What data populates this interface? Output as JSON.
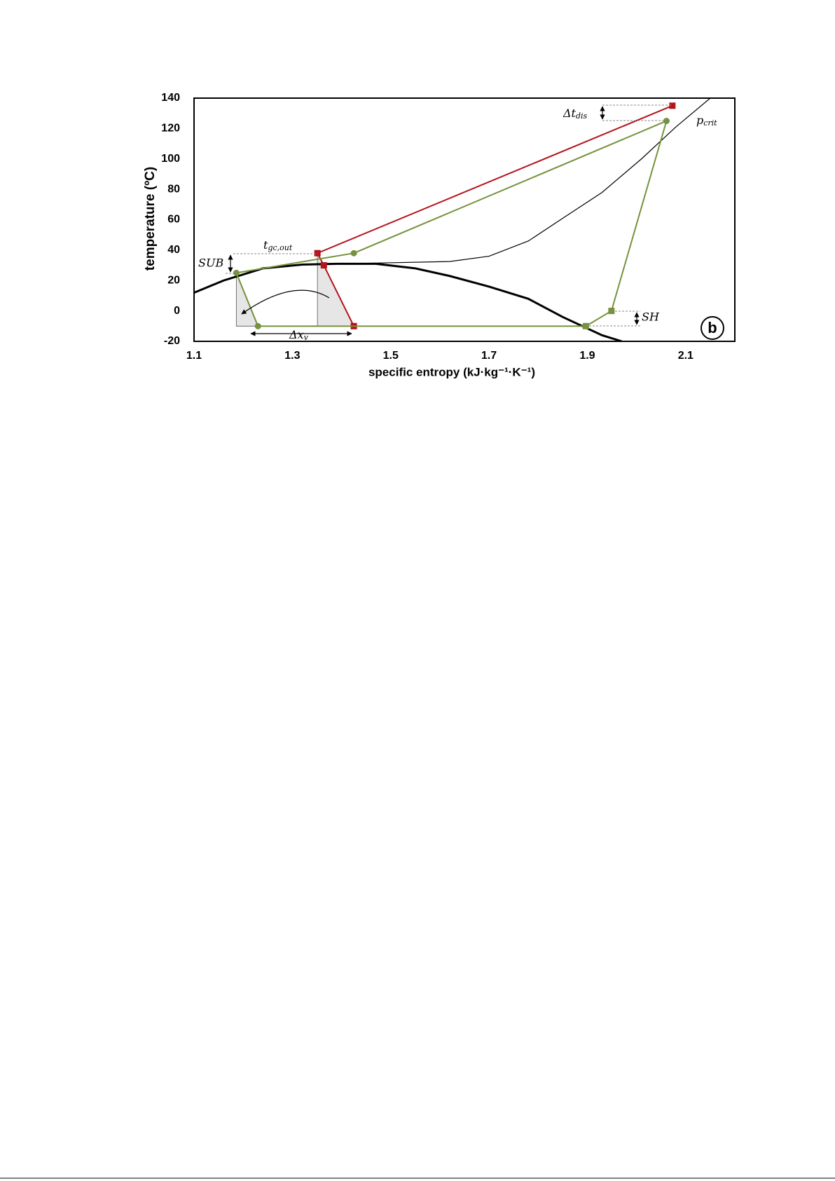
{
  "chart_data": {
    "type": "line",
    "x_label": "specific entropy (kJ·kg⁻¹·K⁻¹)",
    "y_label": "temperature (ºC)",
    "xlim": [
      1.1,
      2.2
    ],
    "ylim": [
      -20,
      140
    ],
    "xticks": [
      1.1,
      1.3,
      1.5,
      1.7,
      1.9,
      2.1
    ],
    "yticks": [
      -20,
      0,
      20,
      40,
      60,
      80,
      100,
      120,
      140
    ],
    "grid": false,
    "shaded": [
      {
        "color": "#e6e6e6",
        "x": [
          1.186,
          1.186,
          1.23
        ],
        "values": [
          25,
          -10,
          -10
        ]
      },
      {
        "color": "#e6e6e6",
        "x": [
          1.351,
          1.351,
          1.425
        ],
        "values": [
          38,
          -10,
          -10
        ]
      }
    ],
    "series": [
      {
        "color": "#000000",
        "width": 3,
        "x": [
          1.1,
          1.16,
          1.24,
          1.32,
          1.39,
          1.47,
          1.55,
          1.62,
          1.7,
          1.78,
          1.85,
          1.93,
          1.97
        ],
        "values": [
          12,
          20,
          28,
          30.5,
          31,
          31,
          28,
          23,
          16,
          8,
          -4,
          -16,
          -20
        ]
      },
      {
        "color": "#000000",
        "width": 1.2,
        "x": [
          1.39,
          1.47,
          1.62,
          1.7,
          1.78,
          1.85,
          1.93,
          2.01,
          2.08,
          2.15
        ],
        "values": [
          31,
          31.5,
          32.5,
          36,
          46,
          61,
          78,
          100,
          121,
          140
        ]
      },
      {
        "color": "#b5121b",
        "width": 2,
        "marker": "square",
        "x": [
          2.073,
          1.351,
          1.364,
          1.425
        ],
        "values": [
          135,
          38,
          30,
          -10
        ]
      },
      {
        "color": "#76923c",
        "width": 2,
        "markers": [
          "circle",
          "none",
          "circle",
          "circle",
          "square",
          "square",
          "circle",
          "none"
        ],
        "x": [
          1.186,
          1.351,
          1.425,
          2.061,
          1.949,
          1.897,
          1.23,
          1.186
        ],
        "values": [
          25,
          34,
          38,
          125,
          0,
          -10,
          -10,
          25
        ]
      }
    ],
    "annotations": {
      "t_gc_out": {
        "main": "t",
        "sub": "gc,out"
      },
      "sub": {
        "main": "SUB"
      },
      "dt_dis": {
        "main": "Δt",
        "sub": "dis"
      },
      "p_crit": {
        "main": "p",
        "sub": "crit"
      },
      "sh": {
        "main": "SH"
      },
      "dx_v": {
        "main": "Δx",
        "sub": "v"
      },
      "panel": "b"
    }
  }
}
